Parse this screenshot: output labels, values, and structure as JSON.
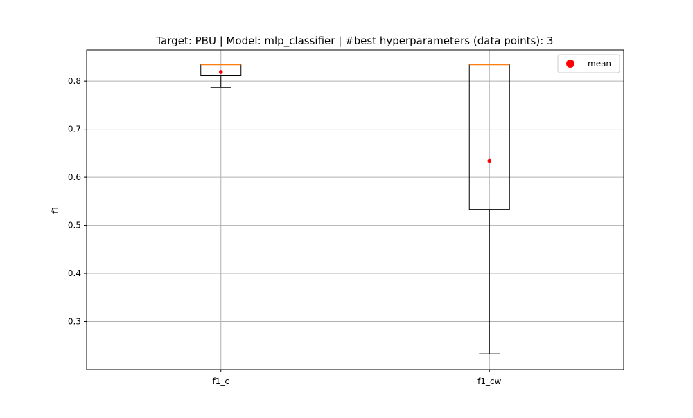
{
  "chart_data": {
    "type": "box",
    "title": "Target: PBU | Model: mlp_classifier | #best hyperparameters (data points): 3",
    "xlabel": "",
    "ylabel": "f1",
    "ylim": [
      0.2,
      0.865
    ],
    "yticks": [
      0.3,
      0.4,
      0.5,
      0.6,
      0.7,
      0.8
    ],
    "ytick_labels": [
      "0.3",
      "0.4",
      "0.5",
      "0.6",
      "0.7",
      "0.8"
    ],
    "grid": true,
    "legend": {
      "position": "top-right",
      "entries": [
        {
          "label": "mean",
          "marker": "circle",
          "color": "#ff0000"
        }
      ]
    },
    "categories": [
      "f1_c",
      "f1_cw"
    ],
    "boxes": [
      {
        "name": "f1_c",
        "whisker_low": 0.787,
        "q1": 0.811,
        "median": 0.834,
        "q3": 0.834,
        "whisker_high": 0.834,
        "mean": 0.819
      },
      {
        "name": "f1_cw",
        "whisker_low": 0.233,
        "q1": 0.533,
        "median": 0.834,
        "q3": 0.834,
        "whisker_high": 0.834,
        "mean": 0.634
      }
    ],
    "colors": {
      "box": "#000000",
      "median": "#ff7f0e",
      "mean": "#ff0000",
      "grid": "#b0b0b0"
    }
  }
}
